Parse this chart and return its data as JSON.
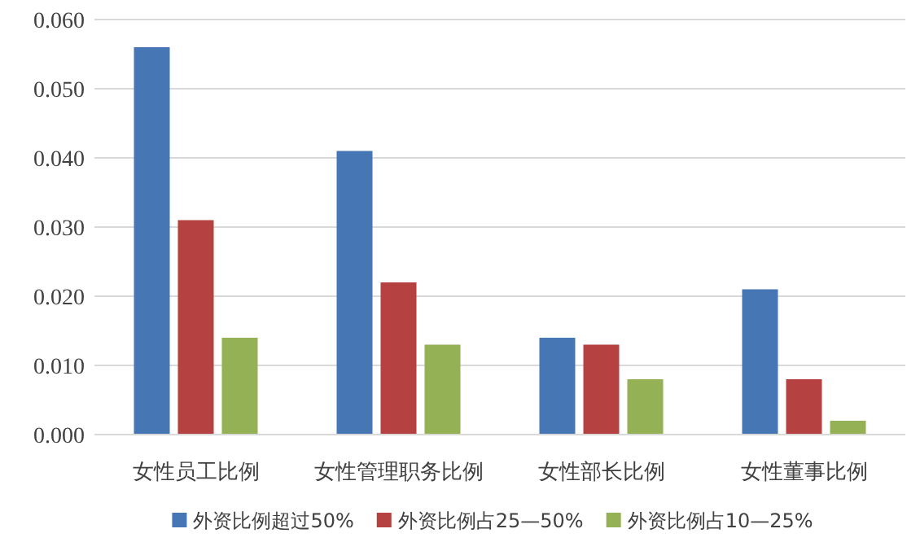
{
  "chart_data": {
    "type": "bar",
    "categories": [
      "女性员工比例",
      "女性管理职务比例",
      "女性部长比例",
      "女性董事比例"
    ],
    "series": [
      {
        "name": "外资比例超过50%",
        "color": "#4676b4",
        "values": [
          0.056,
          0.041,
          0.014,
          0.021
        ]
      },
      {
        "name": "外资比例占25—50%",
        "color": "#b54240",
        "values": [
          0.031,
          0.022,
          0.013,
          0.008
        ]
      },
      {
        "name": "外资比例占10—25%",
        "color": "#94b255",
        "values": [
          0.014,
          0.013,
          0.008,
          0.002
        ]
      }
    ],
    "ylim": [
      0,
      0.06
    ],
    "yticks": [
      {
        "value": 0,
        "label": "0.000"
      },
      {
        "value": 0.01,
        "label": "0.010"
      },
      {
        "value": 0.02,
        "label": "0.020"
      },
      {
        "value": 0.03,
        "label": "0.030"
      },
      {
        "value": 0.04,
        "label": "0.040"
      },
      {
        "value": 0.05,
        "label": "0.050"
      },
      {
        "value": 0.06,
        "label": "0.060"
      }
    ],
    "grid": "y",
    "legend": "bottom"
  }
}
